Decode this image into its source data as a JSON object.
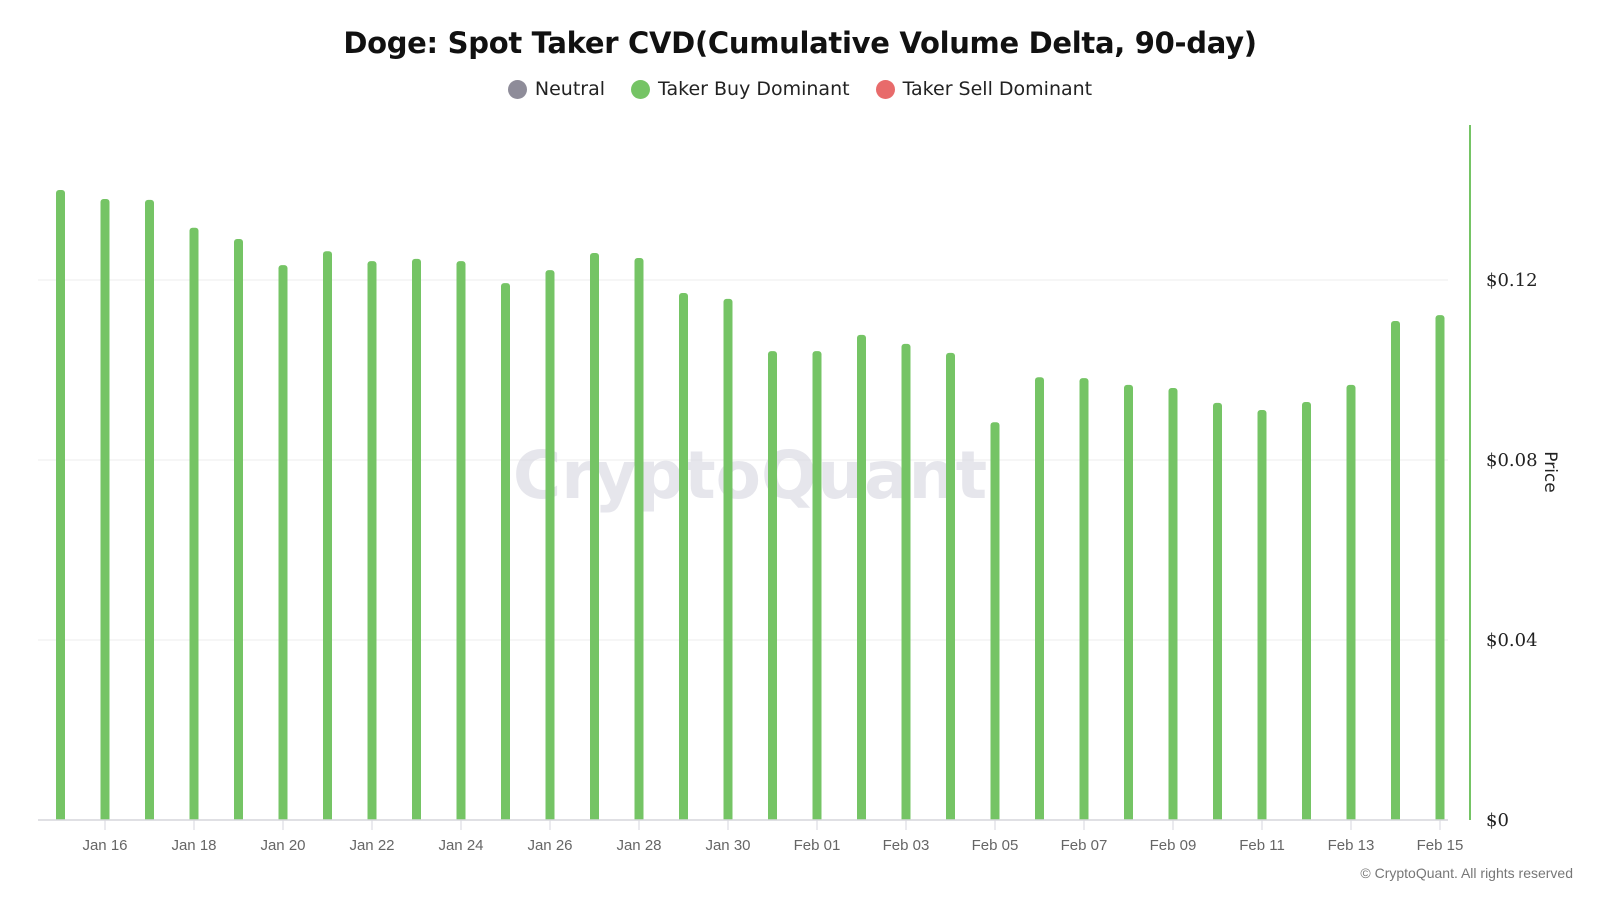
{
  "title": "Doge: Spot Taker CVD(Cumulative Volume Delta, 90-day)",
  "legend": [
    {
      "label": "Neutral",
      "color": "#8e8c99"
    },
    {
      "label": "Taker Buy Dominant",
      "color": "#75c465"
    },
    {
      "label": "Taker Sell Dominant",
      "color": "#e86b6b"
    }
  ],
  "watermark": "CryptoQuant",
  "footer": "© CryptoQuant. All rights reserved",
  "y_axis": {
    "label": "Price",
    "ticks": [
      "$0",
      "$0.04",
      "$0.08",
      "$0.12"
    ],
    "axis_color": "#75c465"
  },
  "x_axis": {
    "ticks": [
      "Jan 16",
      "Jan 18",
      "Jan 20",
      "Jan 22",
      "Jan 24",
      "Jan 26",
      "Jan 28",
      "Jan 30",
      "Feb 01",
      "Feb 03",
      "Feb 05",
      "Feb 07",
      "Feb 09",
      "Feb 11",
      "Feb 13",
      "Feb 15"
    ]
  },
  "chart_data": {
    "type": "bar",
    "title": "Doge: Spot Taker CVD(Cumulative Volume Delta, 90-day)",
    "xlabel": "",
    "ylabel": "Price",
    "ylim": [
      0,
      0.155
    ],
    "y_ticks": [
      0,
      0.04,
      0.08,
      0.12
    ],
    "grid": true,
    "legend_position": "top",
    "legend": [
      "Neutral",
      "Taker Buy Dominant",
      "Taker Sell Dominant"
    ],
    "bar_color_meaning": "Taker Buy Dominant (all bars green)",
    "categories": [
      "Jan 15",
      "Jan 16",
      "Jan 17",
      "Jan 18",
      "Jan 19",
      "Jan 20",
      "Jan 21",
      "Jan 22",
      "Jan 23",
      "Jan 24",
      "Jan 25",
      "Jan 26",
      "Jan 27",
      "Jan 28",
      "Jan 29",
      "Jan 30",
      "Jan 31",
      "Feb 01",
      "Feb 02",
      "Feb 03",
      "Feb 04",
      "Feb 05",
      "Feb 06",
      "Feb 07",
      "Feb 08",
      "Feb 09",
      "Feb 10",
      "Feb 11",
      "Feb 12",
      "Feb 13",
      "Feb 14",
      "Feb 15"
    ],
    "series": [
      {
        "name": "Taker Buy Dominant",
        "color": "#75c465",
        "values": [
          0.14,
          0.138,
          0.1378,
          0.1316,
          0.1291,
          0.1233,
          0.1264,
          0.1242,
          0.1247,
          0.1242,
          0.1193,
          0.1222,
          0.126,
          0.1249,
          0.1171,
          0.1158,
          0.1042,
          0.1042,
          0.1078,
          0.1058,
          0.1038,
          0.0884,
          0.0984,
          0.0982,
          0.0967,
          0.096,
          0.0927,
          0.0911,
          0.0929,
          0.0967,
          0.1109,
          0.1122
        ]
      }
    ]
  }
}
